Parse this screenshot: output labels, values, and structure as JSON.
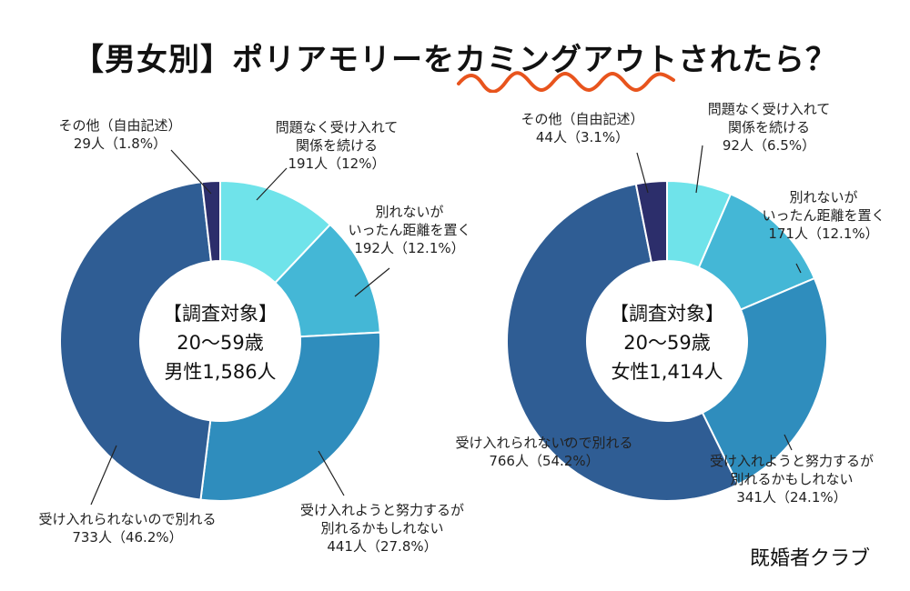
{
  "title": "【男女別】ポリアモリーをカミングアウトされたら？",
  "brand": "既婚者クラブ",
  "colors": {
    "continue": "#6fe3ea",
    "separate_once": "#44b7d6",
    "try_accept": "#2f8dbd",
    "break_up": "#2f5d94",
    "other": "#2c2e6b"
  },
  "chart_data": [
    {
      "type": "pie",
      "center_text": [
        "【調査対象】",
        "20～59歳",
        "男性1,586人"
      ],
      "slices": [
        {
          "lines": [
            "問題なく受け入れて",
            "関係を続ける",
            "191人（12%）"
          ],
          "value": 191,
          "percent": 12,
          "color": "#6fe3ea"
        },
        {
          "lines": [
            "別れないが",
            "いったん距離を置く",
            "192人（12.1%）"
          ],
          "value": 192,
          "percent": 12.1,
          "color": "#44b7d6"
        },
        {
          "lines": [
            "受け入れようと努力するが",
            "別れるかもしれない",
            "441人（27.8%）"
          ],
          "value": 441,
          "percent": 27.8,
          "color": "#2f8dbd"
        },
        {
          "lines": [
            "受け入れられないので別れる",
            "733人（46.2%）"
          ],
          "value": 733,
          "percent": 46.2,
          "color": "#2f5d94"
        },
        {
          "lines": [
            "その他（自由記述）",
            "29人（1.8%）"
          ],
          "value": 29,
          "percent": 1.8,
          "color": "#2c2e6b"
        }
      ]
    },
    {
      "type": "pie",
      "center_text": [
        "【調査対象】",
        "20～59歳",
        "女性1,414人"
      ],
      "slices": [
        {
          "lines": [
            "問題なく受け入れて",
            "関係を続ける",
            "92人（6.5%）"
          ],
          "value": 92,
          "percent": 6.5,
          "color": "#6fe3ea"
        },
        {
          "lines": [
            "別れないが",
            "いったん距離を置く",
            "171人（12.1%）"
          ],
          "value": 171,
          "percent": 12.1,
          "color": "#44b7d6"
        },
        {
          "lines": [
            "受け入れようと努力するが",
            "別れるかもしれない",
            "341人（24.1%）"
          ],
          "value": 341,
          "percent": 24.1,
          "color": "#2f8dbd"
        },
        {
          "lines": [
            "受け入れられないので別れる",
            "766人（54.2%）"
          ],
          "value": 766,
          "percent": 54.2,
          "color": "#2f5d94"
        },
        {
          "lines": [
            "その他（自由記述）",
            "44人（3.1%）"
          ],
          "value": 44,
          "percent": 3.1,
          "color": "#2c2e6b"
        }
      ]
    }
  ]
}
